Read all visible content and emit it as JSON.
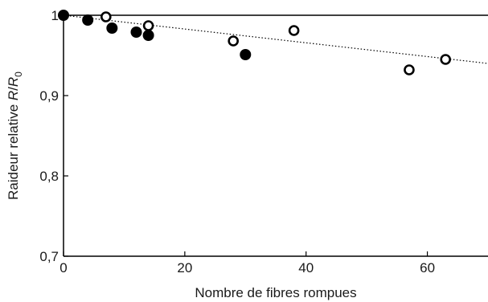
{
  "chart_data": {
    "type": "scatter",
    "title": "",
    "xlabel": "Nombre de fibres rompues",
    "ylabel_main": "Raideur relative ",
    "ylabel_ratio_R": "R",
    "ylabel_ratio_slash": "/",
    "ylabel_ratio_R0": "R",
    "ylabel_ratio_sub": "0",
    "xlim": [
      0,
      70
    ],
    "ylim": [
      0.7,
      1.0
    ],
    "x_ticks": [
      0,
      20,
      40,
      60
    ],
    "x_tick_labels": [
      "0",
      "20",
      "40",
      "60"
    ],
    "y_ticks": [
      0.7,
      0.8,
      0.9,
      1.0
    ],
    "y_tick_labels": [
      "0,7",
      "0,8",
      "0,9",
      "1"
    ],
    "grid": false,
    "series": [
      {
        "marker": "filled-circle",
        "color": "#000000",
        "x": [
          0,
          4,
          8,
          12,
          14,
          30
        ],
        "y": [
          1.0,
          0.994,
          0.984,
          0.979,
          0.975,
          0.951
        ]
      },
      {
        "marker": "open-circle",
        "color": "#000000",
        "x": [
          7,
          14,
          28,
          38,
          57,
          63
        ],
        "y": [
          0.998,
          0.987,
          0.968,
          0.981,
          0.932,
          0.945
        ]
      }
    ],
    "trendline": {
      "style": "dotted",
      "x": [
        0,
        70
      ],
      "y": [
        1.0,
        0.94
      ]
    }
  }
}
